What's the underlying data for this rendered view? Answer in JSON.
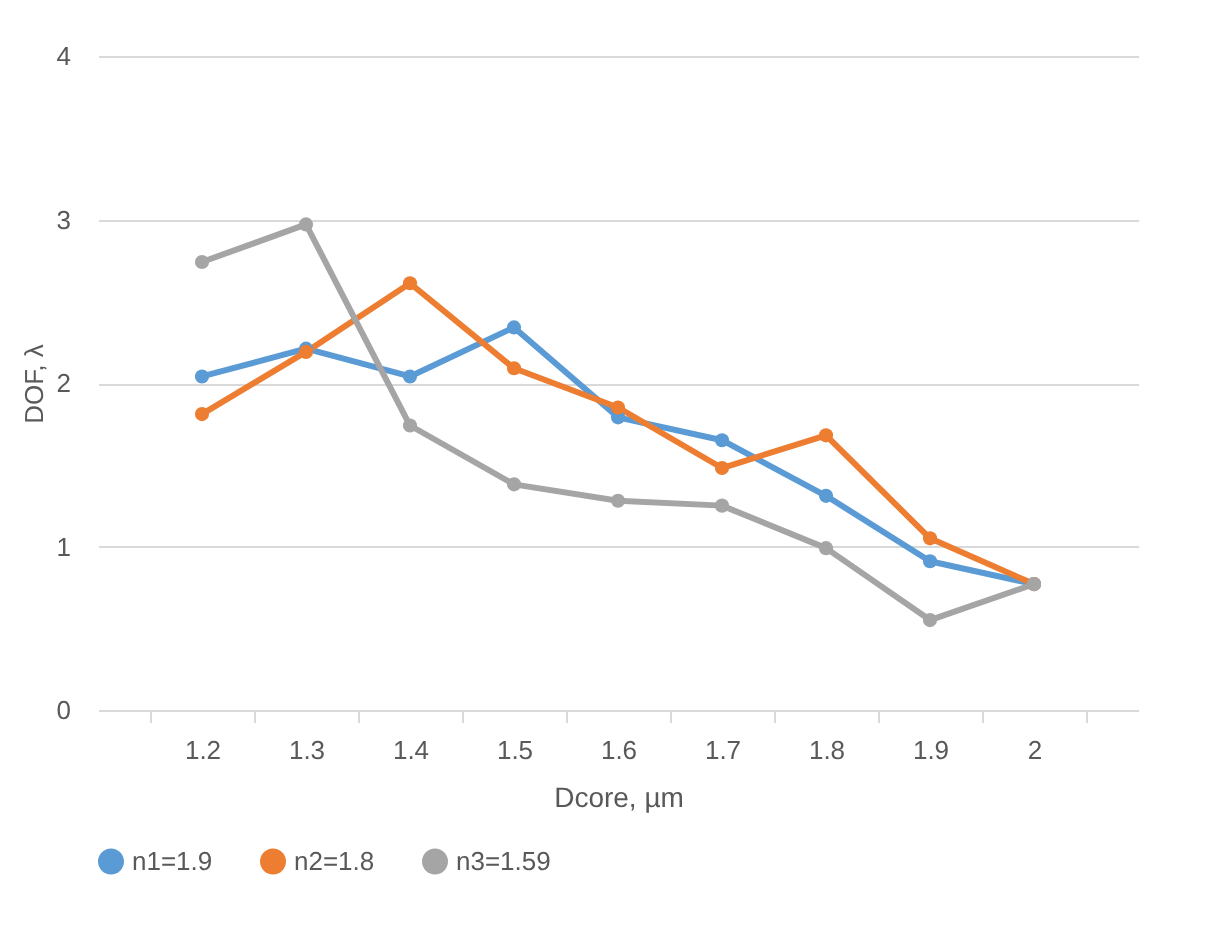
{
  "chart_data": {
    "type": "line",
    "xlabel": "Dcore, µm",
    "ylabel": "DOF, λ",
    "categories": [
      "1.2",
      "1.3",
      "1.4",
      "1.5",
      "1.6",
      "1.7",
      "1.8",
      "1.9",
      "2"
    ],
    "series": [
      {
        "name": "n1=1.9",
        "color": "#5b9bd5",
        "values": [
          2.04,
          2.21,
          2.04,
          2.34,
          1.79,
          1.65,
          1.31,
          0.91,
          0.77
        ]
      },
      {
        "name": "n2=1.8",
        "color": "#ed7d31",
        "values": [
          1.81,
          2.19,
          2.61,
          2.09,
          1.85,
          1.48,
          1.68,
          1.05,
          0.77
        ]
      },
      {
        "name": "n3=1.59",
        "color": "#a5a5a5",
        "values": [
          2.74,
          2.97,
          1.74,
          1.38,
          1.28,
          1.25,
          0.99,
          0.55,
          0.77
        ]
      }
    ],
    "ylim": [
      0,
      4
    ],
    "yticks": [
      0,
      1,
      2,
      3,
      4
    ],
    "grid": "y",
    "legend": "bottom",
    "marker": "circle",
    "line_style": "solid"
  }
}
